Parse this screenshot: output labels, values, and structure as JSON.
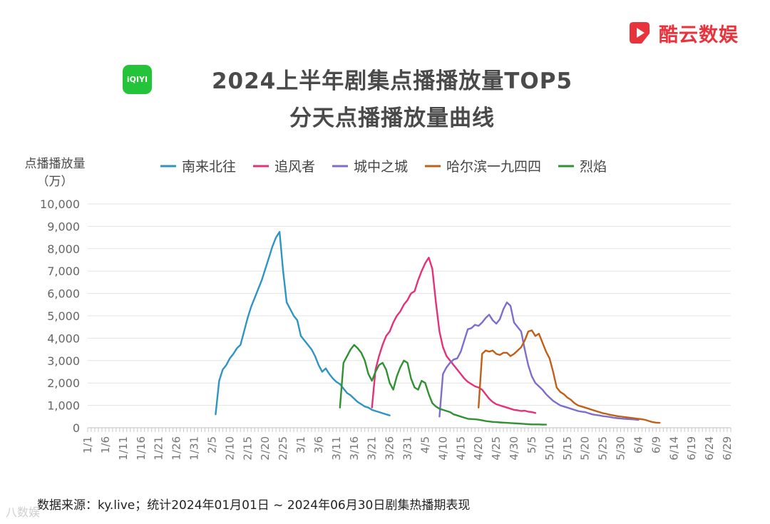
{
  "brand": {
    "name": "酷云数娱",
    "icon": "play-logo-icon",
    "color": "#e8323c"
  },
  "platform_icon": {
    "text": "iQIYI",
    "icon": "iqiyi-logo-icon",
    "color": "#23c43a"
  },
  "title_line1": "2024上半年剧集点播播放量TOP5",
  "title_line2": "分天点播播放量曲线",
  "source_note": "数据来源：ky.live；统计2024年01月01日 ~ 2024年06月30日剧集热播期表现",
  "watermark": "八数娱",
  "chart_data": {
    "type": "line",
    "title": "2024上半年剧集点播播放量TOP5 分天点播播放量曲线",
    "ylabel": "点播播放量",
    "yunit": "（万）",
    "xlabel": "",
    "ylim": [
      0,
      10000
    ],
    "yticks": [
      0,
      1000,
      2000,
      3000,
      4000,
      5000,
      6000,
      7000,
      8000,
      9000,
      10000
    ],
    "ytick_labels": [
      "0",
      "1,000",
      "2,000",
      "3,000",
      "4,000",
      "5,000",
      "6,000",
      "7,000",
      "8,000",
      "9,000",
      "10,000"
    ],
    "x_tick_labels": [
      "1/1",
      "1/6",
      "1/11",
      "1/16",
      "1/21",
      "1/26",
      "1/31",
      "2/5",
      "2/10",
      "2/15",
      "2/20",
      "2/25",
      "3/1",
      "3/6",
      "3/11",
      "3/16",
      "3/21",
      "3/26",
      "3/31",
      "4/5",
      "4/10",
      "4/15",
      "4/20",
      "4/25",
      "4/30",
      "5/5",
      "5/10",
      "5/15",
      "5/20",
      "5/25",
      "5/30",
      "6/4",
      "6/9",
      "6/14",
      "6/19",
      "6/24",
      "6/29"
    ],
    "grid": true,
    "legend_position": "top",
    "series": [
      {
        "name": "南来北往",
        "color": "#2e95c2",
        "x": [
          "2/6",
          "2/7",
          "2/8",
          "2/9",
          "2/10",
          "2/11",
          "2/12",
          "2/13",
          "2/14",
          "2/15",
          "2/16",
          "2/17",
          "2/18",
          "2/19",
          "2/20",
          "2/21",
          "2/22",
          "2/23",
          "2/24",
          "2/25",
          "2/26",
          "2/27",
          "2/28",
          "2/29",
          "3/1",
          "3/2",
          "3/3",
          "3/4",
          "3/5",
          "3/6",
          "3/7",
          "3/8",
          "3/9",
          "3/10",
          "3/11",
          "3/12",
          "3/13",
          "3/14",
          "3/15",
          "3/16",
          "3/17",
          "3/18",
          "3/19",
          "3/20",
          "3/21",
          "3/22",
          "3/23",
          "3/24",
          "3/25",
          "3/26"
        ],
        "y": [
          600,
          2100,
          2600,
          2800,
          3100,
          3300,
          3550,
          3700,
          4300,
          4900,
          5400,
          5800,
          6200,
          6600,
          7100,
          7600,
          8100,
          8500,
          8750,
          7000,
          5600,
          5300,
          5000,
          4800,
          4100,
          3900,
          3700,
          3500,
          3200,
          2800,
          2500,
          2650,
          2400,
          2200,
          2050,
          1950,
          1750,
          1550,
          1450,
          1300,
          1150,
          1050,
          950,
          900,
          800,
          750,
          700,
          650,
          600,
          550
        ]
      },
      {
        "name": "追风者",
        "color": "#e5307a",
        "x": [
          "3/21",
          "3/22",
          "3/23",
          "3/24",
          "3/25",
          "3/26",
          "3/27",
          "3/28",
          "3/29",
          "3/30",
          "3/31",
          "4/1",
          "4/2",
          "4/3",
          "4/4",
          "4/5",
          "4/6",
          "4/7",
          "4/8",
          "4/9",
          "4/10",
          "4/11",
          "4/12",
          "4/13",
          "4/14",
          "4/15",
          "4/16",
          "4/17",
          "4/18",
          "4/19",
          "4/20",
          "4/21",
          "4/22",
          "4/23",
          "4/24",
          "4/25",
          "4/26",
          "4/27",
          "4/28",
          "4/29",
          "4/30",
          "5/1",
          "5/2",
          "5/3",
          "5/4",
          "5/5",
          "5/6"
        ],
        "y": [
          900,
          2600,
          3200,
          3700,
          4100,
          4300,
          4700,
          5000,
          5200,
          5500,
          5700,
          6000,
          6100,
          6600,
          7000,
          7350,
          7600,
          7100,
          5600,
          4300,
          3600,
          3200,
          3000,
          2800,
          2600,
          2400,
          2200,
          2050,
          1950,
          1850,
          1800,
          1700,
          1500,
          1300,
          1150,
          1050,
          1000,
          950,
          900,
          850,
          800,
          780,
          750,
          760,
          720,
          700,
          660
        ]
      },
      {
        "name": "城中之城",
        "color": "#7b6ecc",
        "x": [
          "4/9",
          "4/10",
          "4/11",
          "4/12",
          "4/13",
          "4/14",
          "4/15",
          "4/16",
          "4/17",
          "4/18",
          "4/19",
          "4/20",
          "4/21",
          "4/22",
          "4/23",
          "4/24",
          "4/25",
          "4/26",
          "4/27",
          "4/28",
          "4/29",
          "4/30",
          "5/1",
          "5/2",
          "5/3",
          "5/4",
          "5/5",
          "5/6",
          "5/7",
          "5/8",
          "5/9",
          "5/10",
          "5/11",
          "5/12",
          "5/13",
          "5/14",
          "5/15",
          "5/16",
          "5/17",
          "5/18",
          "5/19",
          "5/20",
          "5/21",
          "5/22",
          "5/23",
          "5/24",
          "5/25",
          "5/26",
          "5/27",
          "5/28",
          "5/29",
          "5/30",
          "5/31",
          "6/1",
          "6/2",
          "6/3",
          "6/4"
        ],
        "y": [
          500,
          2400,
          2700,
          2900,
          3050,
          3100,
          3400,
          3900,
          4400,
          4450,
          4600,
          4550,
          4700,
          4900,
          5050,
          4800,
          4650,
          4850,
          5300,
          5600,
          5450,
          4700,
          4500,
          4300,
          3500,
          2800,
          2300,
          2000,
          1850,
          1700,
          1500,
          1350,
          1200,
          1100,
          1000,
          950,
          900,
          850,
          800,
          750,
          720,
          700,
          650,
          600,
          570,
          550,
          520,
          500,
          480,
          450,
          430,
          410,
          400,
          390,
          380,
          370,
          350
        ]
      },
      {
        "name": "哈尔滨一九四四",
        "color": "#c05f17",
        "x": [
          "4/20",
          "4/21",
          "4/22",
          "4/23",
          "4/24",
          "4/25",
          "4/26",
          "4/27",
          "4/28",
          "4/29",
          "4/30",
          "5/1",
          "5/2",
          "5/3",
          "5/4",
          "5/5",
          "5/6",
          "5/7",
          "5/8",
          "5/9",
          "5/10",
          "5/11",
          "5/12",
          "5/13",
          "5/14",
          "5/15",
          "5/16",
          "5/17",
          "5/18",
          "5/19",
          "5/20",
          "5/21",
          "5/22",
          "5/23",
          "5/24",
          "5/25",
          "5/26",
          "5/27",
          "5/28",
          "5/29",
          "5/30",
          "5/31",
          "6/1",
          "6/2",
          "6/3",
          "6/4",
          "6/5",
          "6/6",
          "6/7",
          "6/8",
          "6/9",
          "6/10"
        ],
        "y": [
          900,
          3300,
          3450,
          3400,
          3450,
          3300,
          3250,
          3350,
          3350,
          3200,
          3300,
          3450,
          3600,
          3900,
          4300,
          4350,
          4100,
          4200,
          3800,
          3400,
          3100,
          2500,
          1800,
          1600,
          1500,
          1350,
          1250,
          1100,
          1000,
          950,
          900,
          850,
          800,
          750,
          700,
          650,
          620,
          580,
          550,
          520,
          500,
          480,
          460,
          440,
          420,
          400,
          380,
          350,
          300,
          250,
          230,
          220
        ]
      },
      {
        "name": "烈焰",
        "color": "#2f9132",
        "x": [
          "3/12",
          "3/13",
          "3/14",
          "3/15",
          "3/16",
          "3/17",
          "3/18",
          "3/19",
          "3/20",
          "3/21",
          "3/22",
          "3/23",
          "3/24",
          "3/25",
          "3/26",
          "3/27",
          "3/28",
          "3/29",
          "3/30",
          "3/31",
          "4/1",
          "4/2",
          "4/3",
          "4/4",
          "4/5",
          "4/6",
          "4/7",
          "4/8",
          "4/9",
          "4/10",
          "4/11",
          "4/12",
          "4/13",
          "4/14",
          "4/15",
          "4/16",
          "4/17",
          "4/18",
          "4/19",
          "4/20",
          "4/21",
          "4/22",
          "4/23",
          "4/24",
          "4/25",
          "4/26",
          "4/27",
          "4/28",
          "4/29",
          "4/30",
          "5/1",
          "5/2",
          "5/3",
          "5/4",
          "5/5",
          "5/6",
          "5/7",
          "5/8",
          "5/9"
        ],
        "y": [
          900,
          2900,
          3200,
          3500,
          3700,
          3550,
          3350,
          3000,
          2400,
          2100,
          2500,
          2800,
          2900,
          2600,
          2000,
          1700,
          2300,
          2700,
          3000,
          2900,
          2200,
          1800,
          1700,
          2100,
          2000,
          1500,
          1100,
          950,
          850,
          800,
          750,
          700,
          600,
          550,
          500,
          450,
          400,
          390,
          380,
          360,
          330,
          300,
          280,
          260,
          250,
          240,
          230,
          220,
          210,
          200,
          190,
          180,
          170,
          160,
          150,
          150,
          150,
          140,
          140
        ]
      }
    ]
  }
}
